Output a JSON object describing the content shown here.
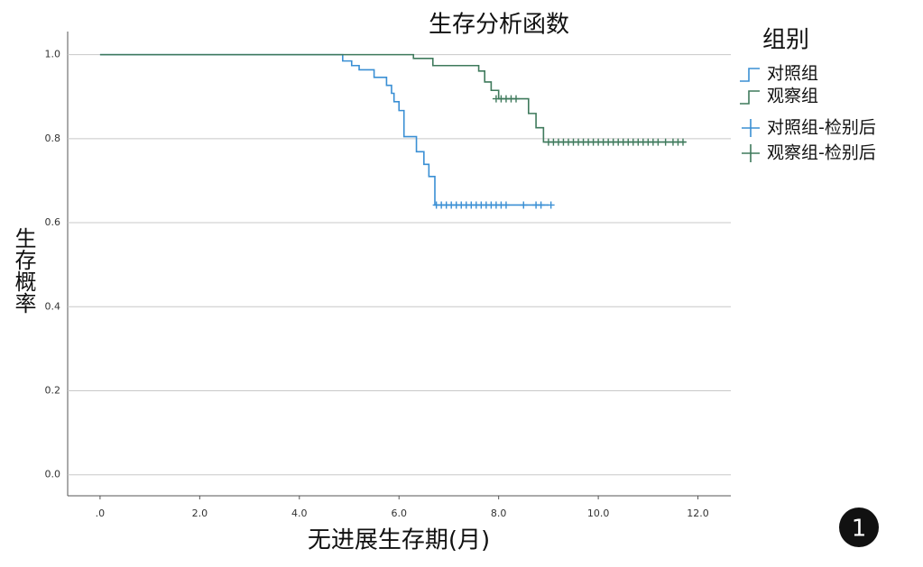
{
  "chart_data": {
    "type": "survival",
    "title": "生存分析函数",
    "x_label": "无进展生存期(月)",
    "y_label": "生存概率",
    "legend_title": "组别",
    "annotation": "1",
    "grid": true,
    "legend_position": "right",
    "xlim": [
      -0.65,
      12.66
    ],
    "ylim": [
      -0.05,
      1.055
    ],
    "xticks": [
      {
        "value": 0,
        "label": ".0"
      },
      {
        "value": 2,
        "label": "2.0"
      },
      {
        "value": 4,
        "label": "4.0"
      },
      {
        "value": 6,
        "label": "6.0"
      },
      {
        "value": 8,
        "label": "8.0"
      },
      {
        "value": 10,
        "label": "10.0"
      },
      {
        "value": 12,
        "label": "12.0"
      }
    ],
    "yticks": [
      {
        "value": 0,
        "label": "0.0"
      },
      0.2,
      0.4,
      0.6,
      0.8,
      {
        "value": 1,
        "label": "1.0"
      }
    ],
    "series": [
      {
        "name": "对照组",
        "kind": "step",
        "color": "#3a8fd4",
        "x": [
          0,
          4.87,
          5.05,
          5.2,
          5.5,
          5.75,
          5.85,
          5.9,
          6.0,
          6.1,
          6.35,
          6.5,
          6.6,
          6.72,
          9.0
        ],
        "values": [
          1.0,
          0.985,
          0.974,
          0.964,
          0.946,
          0.927,
          0.908,
          0.888,
          0.867,
          0.805,
          0.769,
          0.739,
          0.71,
          0.642,
          0.642
        ]
      },
      {
        "name": "观察组",
        "kind": "step",
        "color": "#3f7a5c",
        "x": [
          0,
          6.29,
          6.68,
          7.6,
          7.72,
          7.85,
          8.0,
          8.6,
          8.75,
          8.9,
          11.75
        ],
        "values": [
          1.0,
          0.991,
          0.974,
          0.961,
          0.935,
          0.915,
          0.895,
          0.86,
          0.826,
          0.792,
          0.792
        ]
      },
      {
        "name": "对照组-检别后",
        "kind": "censor",
        "color": "#3a8fd4",
        "x": [
          6.75,
          6.85,
          6.95,
          7.05,
          7.15,
          7.25,
          7.35,
          7.45,
          7.55,
          7.65,
          7.75,
          7.85,
          7.95,
          8.05,
          8.15,
          8.5,
          8.75,
          8.85,
          9.05
        ],
        "values": [
          0.642,
          0.642,
          0.642,
          0.642,
          0.642,
          0.642,
          0.642,
          0.642,
          0.642,
          0.642,
          0.642,
          0.642,
          0.642,
          0.642,
          0.642,
          0.642,
          0.642,
          0.642,
          0.642
        ]
      },
      {
        "name": "观察组-检别后",
        "kind": "censor",
        "color": "#3f7a5c",
        "x": [
          7.95,
          8.05,
          8.15,
          8.25,
          8.35,
          9.0,
          9.1,
          9.2,
          9.3,
          9.4,
          9.5,
          9.6,
          9.7,
          9.8,
          9.9,
          10.0,
          10.1,
          10.2,
          10.3,
          10.4,
          10.5,
          10.6,
          10.7,
          10.8,
          10.9,
          11.0,
          11.1,
          11.2,
          11.35,
          11.5,
          11.6,
          11.7
        ],
        "values": [
          0.895,
          0.895,
          0.895,
          0.895,
          0.895,
          0.792,
          0.792,
          0.792,
          0.792,
          0.792,
          0.792,
          0.792,
          0.792,
          0.792,
          0.792,
          0.792,
          0.792,
          0.792,
          0.792,
          0.792,
          0.792,
          0.792,
          0.792,
          0.792,
          0.792,
          0.792,
          0.792,
          0.792,
          0.792,
          0.792,
          0.792,
          0.792
        ]
      }
    ]
  }
}
